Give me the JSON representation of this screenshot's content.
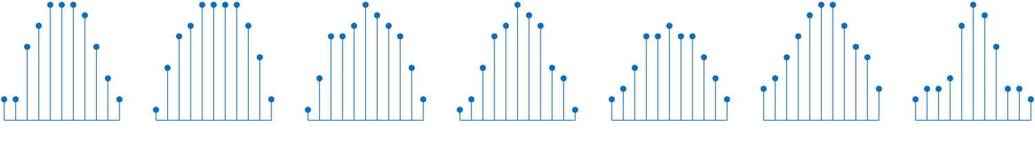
{
  "chart_data": [
    {
      "type": "stem",
      "color": "#0a6ebd",
      "ylim": [
        0,
        11
      ],
      "values": [
        2,
        2,
        7,
        9,
        11,
        11,
        11,
        10,
        7,
        4,
        2
      ]
    },
    {
      "type": "stem",
      "color": "#0a6ebd",
      "ylim": [
        0,
        11
      ],
      "values": [
        1,
        5,
        8,
        9,
        11,
        11,
        11,
        11,
        9,
        6,
        2
      ]
    },
    {
      "type": "stem",
      "color": "#0a6ebd",
      "ylim": [
        0,
        11
      ],
      "values": [
        1,
        4,
        8,
        8,
        9,
        11,
        10,
        9,
        8,
        5,
        2
      ]
    },
    {
      "type": "stem",
      "color": "#0a6ebd",
      "ylim": [
        0,
        11
      ],
      "values": [
        1,
        2,
        5,
        8,
        9,
        11,
        10,
        9,
        5,
        4,
        1
      ]
    },
    {
      "type": "stem",
      "color": "#0a6ebd",
      "ylim": [
        0,
        11
      ],
      "values": [
        2,
        3,
        5,
        8,
        8,
        9,
        8,
        8,
        6,
        4,
        2
      ]
    },
    {
      "type": "stem",
      "color": "#0a6ebd",
      "ylim": [
        0,
        11
      ],
      "values": [
        3,
        4,
        6,
        8,
        10,
        11,
        11,
        9,
        7,
        6,
        3
      ]
    },
    {
      "type": "stem",
      "color": "#0a6ebd",
      "ylim": [
        0,
        11
      ],
      "values": [
        2,
        3,
        3,
        4,
        9,
        11,
        10,
        7,
        3,
        3,
        2
      ]
    }
  ]
}
